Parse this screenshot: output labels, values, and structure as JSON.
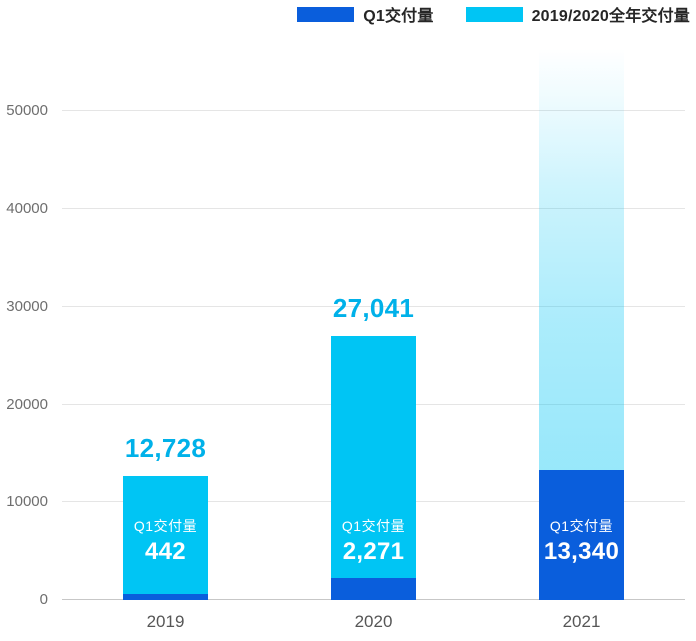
{
  "legend": {
    "items": [
      {
        "label": "Q1交付量",
        "color": "#0A5EDC"
      },
      {
        "label": "2019/2020全年交付量",
        "color": "#00C5F4"
      }
    ]
  },
  "chart_data": {
    "type": "bar",
    "title": "",
    "categories": [
      "2019",
      "2020",
      "2021"
    ],
    "series": [
      {
        "name": "Q1交付量",
        "color": "#0A5EDC",
        "values": [
          442,
          2271,
          13340
        ]
      },
      {
        "name": "2019/2020全年交付量",
        "color": "#00C5F4",
        "values": [
          12728,
          27041,
          null
        ]
      }
    ],
    "total_labels": [
      "12,728",
      "27,041",
      null
    ],
    "inner_label": "Q1交付量",
    "q1_labels": [
      "442",
      "2,271",
      "13,340"
    ],
    "yticks": [
      0,
      10000,
      20000,
      30000,
      40000,
      50000
    ],
    "ylim": [
      0,
      56800
    ],
    "fade_bar_top_value": 56500,
    "grid": true,
    "legend_position": "top-right",
    "colors": {
      "q1_bar": "#0A5EDC",
      "full_year_bar": "#00C5F4",
      "total_value_label": "#00B1E9",
      "inner_text": "#ffffff",
      "axis_text": "#6e6e6e"
    }
  }
}
